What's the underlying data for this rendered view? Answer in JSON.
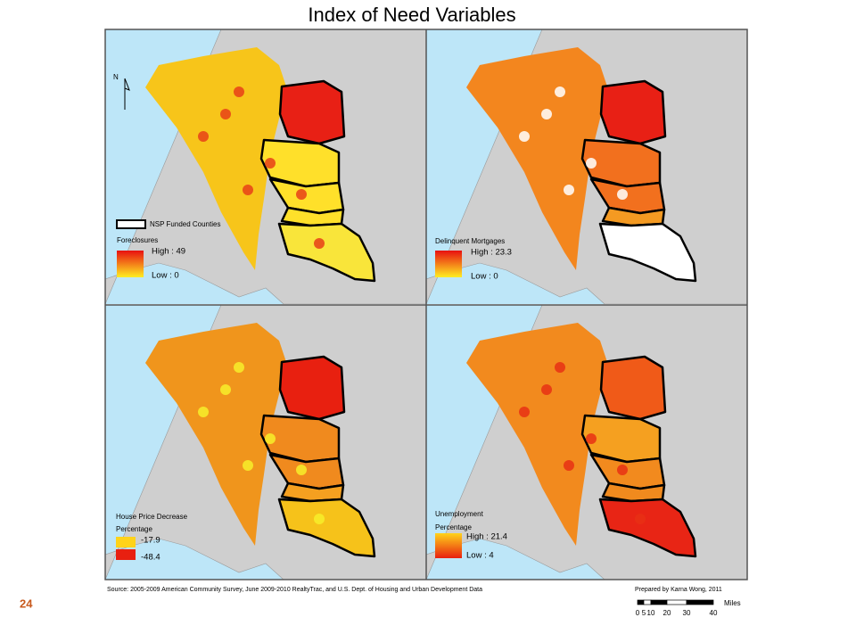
{
  "title": "Index of Need Variables",
  "panels": [
    {
      "north": "N",
      "boundary_label": "NSP Funded Counties",
      "legend_title": "Foreclosures",
      "high": "High : 49",
      "low": "Low : 0"
    },
    {
      "legend_title": "Delinquent Mortgages",
      "high": "High : 23.3",
      "low": "Low : 0"
    },
    {
      "legend_title": "House Price Decrease",
      "legend_subtitle": "Percentage",
      "high": "-17.9",
      "low": "-48.4"
    },
    {
      "legend_title": "Unemployment",
      "legend_subtitle": "Percentage",
      "high": "High : 21.4",
      "low": "Low : 4"
    }
  ],
  "footer": {
    "source": "Source:  2005-2009 American Community Survey, June 2009-2010 RealtyTrac, and U.S. Dept. of Housing and Urban Development Data",
    "credit": "Prepared by Karna Wong, 2011",
    "scale": {
      "labels": [
        "0",
        "5",
        "10",
        "20",
        "30",
        "40"
      ],
      "unit": "Miles"
    },
    "slide_number": "24"
  }
}
